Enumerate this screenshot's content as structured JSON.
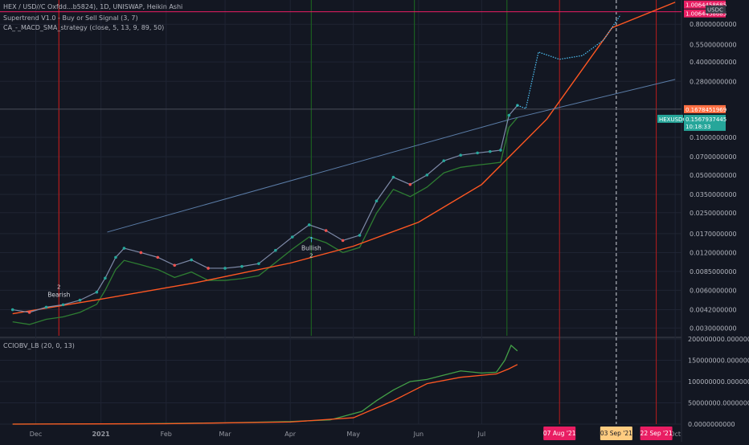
{
  "legend": {
    "symbol_line": "HEX / USD//C Oxfdd...b5824), 1D, UNISWAP, Heikin Ashi",
    "supertrend_line": "Supertrend V1.0 - Buy or Sell Signal (3, 7)",
    "macd_line": "CA_-_MACD_SMA_strategy (close, 5, 13, 9, 89, 50)",
    "cciobv_line": "CCIOBV_LB (20, 0, 13)"
  },
  "colors": {
    "background": "#131722",
    "grid": "#1f2433",
    "price_line": "#2962ff",
    "supertrend_up": "#2e7d32",
    "supertrend_down": "#d32f2f",
    "parabola": "#ff5722",
    "trendline": "#5b7da8",
    "projection": "#4fc3f7",
    "vertical_red": "#b71c1c",
    "vertical_green": "#1b5e20",
    "obv": "#43a047",
    "obv_signal": "#ff5722",
    "label_red": "#e91e63",
    "label_teal": "#26a69a",
    "label_orange": "#ff7043"
  },
  "chart_data": [
    {
      "type": "line",
      "title": "HEX / USD//C Oxfdd...b5824), 1D, UNISWAP, Heikin Ashi",
      "scale": "log",
      "y_axis_labels": [
        "0.8000000000",
        "0.5500000000",
        "0.4000000000",
        "0.2800000000",
        "0.1000000000",
        "0.0700000000",
        "0.0500000000",
        "0.0350000000",
        "0.0250000000",
        "0.0170000000",
        "0.0120000000",
        "0.0085000000",
        "0.0060000000",
        "0.0042000000",
        "0.0030000000"
      ],
      "x_tick_labels": [
        "Dec",
        "2021",
        "Feb",
        "Mar",
        "Apr",
        "May",
        "Jun",
        "Jul",
        "Oct"
      ],
      "date_markers": [
        "07 Aug '21",
        "03 Sep '21",
        "22 Sep '21"
      ],
      "price_labels": [
        "1.0064458685",
        "1.0064458685",
        "USDC",
        "0.1678451969",
        "HEXUSDC",
        "0.1567937445",
        "10:18:33"
      ],
      "annotations": [
        "Bearish",
        "Bullish",
        "2",
        "2"
      ],
      "ylim": [
        0.0026,
        1.25
      ],
      "series": [
        {
          "dates": [
            "2020-11-20",
            "2020-11-28",
            "2020-12-06",
            "2020-12-14",
            "2020-12-22",
            "2020-12-30",
            "2021-01-03",
            "2021-01-08",
            "2021-01-12",
            "2021-01-20",
            "2021-01-28",
            "2021-02-05",
            "2021-02-13",
            "2021-02-21",
            "2021-03-01",
            "2021-03-09",
            "2021-03-17",
            "2021-03-25",
            "2021-04-02",
            "2021-04-10",
            "2021-04-18",
            "2021-04-26",
            "2021-05-04",
            "2021-05-12",
            "2021-05-20",
            "2021-05-28",
            "2021-06-05",
            "2021-06-13",
            "2021-06-21",
            "2021-06-29",
            "2021-07-05",
            "2021-07-10",
            "2021-07-14",
            "2021-07-18"
          ],
          "values": [
            0.0042,
            0.004,
            0.0044,
            0.0046,
            0.005,
            0.0058,
            0.0075,
            0.011,
            0.013,
            0.012,
            0.011,
            0.0095,
            0.0105,
            0.009,
            0.009,
            0.0093,
            0.0098,
            0.0125,
            0.016,
            0.02,
            0.018,
            0.015,
            0.0165,
            0.031,
            0.048,
            0.042,
            0.05,
            0.065,
            0.072,
            0.075,
            0.077,
            0.079,
            0.15,
            0.18
          ]
        },
        {
          "dates": [
            "2021-07-18",
            "2021-07-22",
            "2021-07-28",
            "2021-08-07",
            "2021-08-18",
            "2021-08-28",
            "2021-09-05"
          ],
          "values": [
            0.18,
            0.17,
            0.48,
            0.42,
            0.45,
            0.6,
            0.95
          ]
        },
        {
          "dates": [
            "2020-11-20",
            "2021-01-01",
            "2021-02-15",
            "2021-04-01",
            "2021-05-01",
            "2021-06-01",
            "2021-07-01",
            "2021-08-01",
            "2021-09-01",
            "2021-10-01"
          ],
          "values": [
            0.0039,
            0.0051,
            0.0069,
            0.0099,
            0.0135,
            0.021,
            0.042,
            0.14,
            0.75,
            1.2
          ]
        },
        {
          "dates": [
            "2021-01-04",
            "2021-07-15",
            "2021-10-01"
          ],
          "values": [
            0.0175,
            0.14,
            0.29
          ]
        }
      ]
    },
    {
      "type": "line",
      "title": "CCIOBV_LB (20, 0, 13)",
      "y_axis_labels": [
        "200000000.0000000000",
        "150000000.0000000000",
        "100000000.0000000000",
        "50000000.0000000000",
        "0.0000000000"
      ],
      "ylim": [
        0,
        200000000
      ],
      "series": [
        {
          "dates": [
            "2020-11-20",
            "2021-01-20",
            "2021-03-01",
            "2021-04-01",
            "2021-04-20",
            "2021-05-05",
            "2021-05-12",
            "2021-05-20",
            "2021-05-28",
            "2021-06-05",
            "2021-06-13",
            "2021-06-21",
            "2021-07-01",
            "2021-07-08",
            "2021-07-12",
            "2021-07-15",
            "2021-07-18"
          ],
          "values": [
            0,
            1000000,
            3000000,
            6000000,
            10000000,
            30000000,
            55000000,
            80000000,
            100000000,
            105000000,
            115000000,
            125000000,
            120000000,
            122000000,
            150000000,
            185000000,
            172000000
          ]
        },
        {
          "dates": [
            "2020-11-20",
            "2021-02-01",
            "2021-04-01",
            "2021-05-01",
            "2021-05-20",
            "2021-06-05",
            "2021-06-21",
            "2021-07-08",
            "2021-07-14",
            "2021-07-18"
          ],
          "values": [
            0,
            1000000,
            5000000,
            15000000,
            55000000,
            95000000,
            110000000,
            118000000,
            130000000,
            140000000
          ]
        }
      ]
    }
  ]
}
